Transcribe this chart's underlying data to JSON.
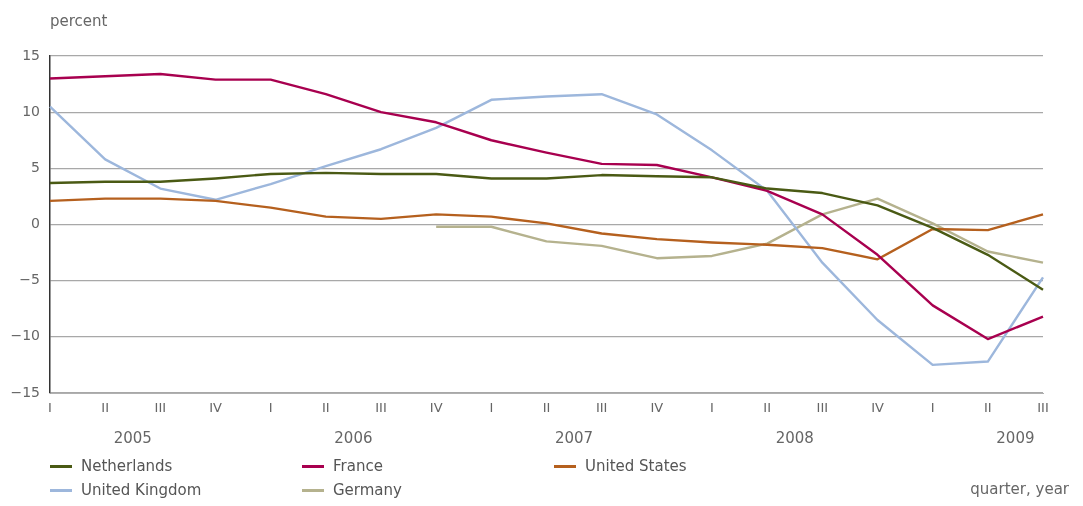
{
  "chart_data": {
    "type": "line",
    "ylabel": "percent",
    "xlabel": "quarter, year",
    "ylim": [
      -15,
      15
    ],
    "yticks": [
      {
        "value": -15,
        "label": "−15"
      },
      {
        "value": -10,
        "label": "−10"
      },
      {
        "value": -5,
        "label": "−5"
      },
      0,
      5,
      10,
      15
    ],
    "categories": [
      "I",
      "II",
      "III",
      "IV",
      "I",
      "II",
      "III",
      "IV",
      "I",
      "II",
      "III",
      "IV",
      "I",
      "II",
      "III",
      "IV",
      "I",
      "II",
      "III"
    ],
    "annotations": [
      "2005",
      "2006",
      "2007",
      "2008",
      "2009"
    ],
    "grid": "y",
    "legend": "bottom",
    "marker": "none",
    "line_style": "solid",
    "series": [
      {
        "name": "Netherlands",
        "color": "#4a5a14",
        "values": [
          3.7,
          3.8,
          3.8,
          4.1,
          4.5,
          4.6,
          4.5,
          4.5,
          4.1,
          4.1,
          4.4,
          4.3,
          4.2,
          3.2,
          2.8,
          1.7,
          -0.3,
          -2.7,
          -5.8
        ]
      },
      {
        "name": "France",
        "color": "#a8004f",
        "values": [
          13.0,
          13.2,
          13.4,
          12.9,
          12.9,
          11.6,
          10.0,
          9.1,
          7.5,
          6.4,
          5.4,
          5.3,
          4.2,
          3.0,
          0.9,
          -2.7,
          -7.2,
          -10.2,
          -8.2
        ]
      },
      {
        "name": "United States",
        "color": "#b5601e",
        "values": [
          2.1,
          2.3,
          2.3,
          2.1,
          1.5,
          0.7,
          0.5,
          0.9,
          0.7,
          0.1,
          -0.8,
          -1.3,
          -1.6,
          -1.8,
          -2.1,
          -3.1,
          -0.4,
          -0.5,
          0.9
        ]
      },
      {
        "name": "United Kingdom",
        "color": "#9db7dc",
        "values": [
          10.5,
          5.8,
          3.2,
          2.2,
          3.6,
          5.2,
          6.7,
          8.6,
          11.1,
          11.4,
          11.6,
          9.8,
          6.6,
          3.0,
          -3.4,
          -8.5,
          -12.5,
          -12.2,
          -4.7
        ]
      },
      {
        "name": "Germany",
        "color": "#b5b28e",
        "values": [
          null,
          null,
          null,
          null,
          null,
          null,
          null,
          -0.2,
          -0.2,
          -1.5,
          -1.9,
          -3.0,
          -2.8,
          -1.7,
          0.9,
          2.3,
          0.1,
          -2.4,
          -3.4
        ]
      }
    ]
  }
}
